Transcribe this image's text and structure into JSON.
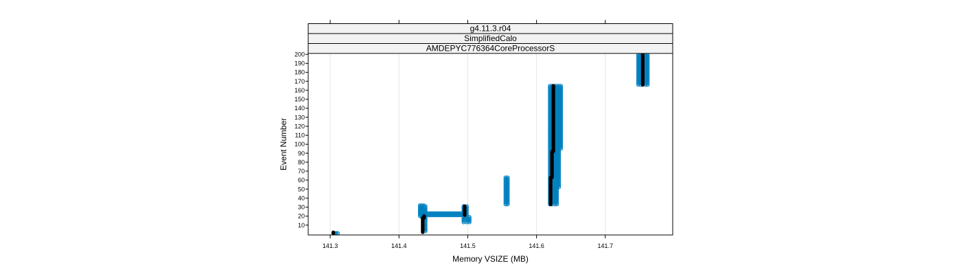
{
  "chart_data": {
    "type": "scatter",
    "strips": [
      "g4.11.3.r04",
      "SimplifiedCalo",
      "AMDEPYC776364CoreProcessorS"
    ],
    "xlabel": "Memory VSIZE (MB)",
    "ylabel": "Event Number",
    "xlim": [
      141.268,
      141.798
    ],
    "ylim": [
      -1,
      201
    ],
    "x_ticks": [
      141.3,
      141.4,
      141.5,
      141.6,
      141.7
    ],
    "x_tick_labels": [
      "141.3",
      "141.4",
      "141.5",
      "141.6",
      "141.7"
    ],
    "y_ticks": [
      10,
      20,
      30,
      40,
      50,
      60,
      70,
      80,
      90,
      100,
      110,
      120,
      130,
      140,
      150,
      160,
      170,
      180,
      190,
      200
    ],
    "y_tick_labels": [
      "10",
      "20",
      "30",
      "40",
      "50",
      "60",
      "70",
      "80",
      "90",
      "100",
      "110",
      "120",
      "130",
      "140",
      "150",
      "160",
      "170",
      "180",
      "190",
      "200"
    ],
    "grid": "vertical",
    "colors": {
      "series_blue": "#0080bf",
      "series_black": "#000000",
      "strip_bg": "#f2f2f2"
    },
    "series": [
      {
        "color": "#0080bf",
        "marker": "open-circle",
        "segments": [
          {
            "x": [
              141.3045,
              141.311
            ],
            "y": [
              1,
              1
            ]
          },
          {
            "x": [
              141.4305,
              141.4305
            ],
            "y": [
              20,
              32
            ]
          },
          {
            "x": [
              141.433,
              141.433
            ],
            "y": [
              19,
              32
            ]
          },
          {
            "x": [
              141.436,
              141.436
            ],
            "y": [
              19,
              32
            ]
          },
          {
            "x": [
              141.4385,
              141.4385
            ],
            "y": [
              3,
              31
            ]
          },
          {
            "x": [
              141.4365,
              141.496
            ],
            "y": [
              21,
              21
            ]
          },
          {
            "x": [
              141.4365,
              141.496
            ],
            "y": [
              23,
              23
            ]
          },
          {
            "x": [
              141.494,
              141.494
            ],
            "y": [
              13,
              31
            ]
          },
          {
            "x": [
              141.4985,
              141.4985
            ],
            "y": [
              13,
              31
            ]
          },
          {
            "x": [
              141.5025,
              141.5025
            ],
            "y": [
              13,
              19
            ]
          },
          {
            "x": [
              141.555,
              141.555
            ],
            "y": [
              33,
              63
            ]
          },
          {
            "x": [
              141.558,
              141.558
            ],
            "y": [
              33,
              63
            ]
          },
          {
            "x": [
              141.6195,
              141.6195
            ],
            "y": [
              33,
              165
            ]
          },
          {
            "x": [
              141.6225,
              141.6225
            ],
            "y": [
              33,
              165
            ]
          },
          {
            "x": [
              141.6265,
              141.6265
            ],
            "y": [
              33,
              165
            ]
          },
          {
            "x": [
              141.6295,
              141.6295
            ],
            "y": [
              33,
              165
            ]
          },
          {
            "x": [
              141.6325,
              141.6325
            ],
            "y": [
              52,
              165
            ]
          },
          {
            "x": [
              141.6355,
              141.6355
            ],
            "y": [
              95,
              165
            ]
          },
          {
            "x": [
              141.748,
              141.748
            ],
            "y": [
              166,
              200
            ]
          },
          {
            "x": [
              141.7515,
              141.7515
            ],
            "y": [
              166,
              200
            ]
          },
          {
            "x": [
              141.7585,
              141.7585
            ],
            "y": [
              166,
              200
            ]
          },
          {
            "x": [
              141.7615,
              141.7615
            ],
            "y": [
              166,
              200
            ]
          }
        ]
      },
      {
        "color": "#000000",
        "marker": "filled-circle",
        "segments": [
          {
            "x": [
              141.3045,
              141.3045
            ],
            "y": [
              1,
              2
            ]
          },
          {
            "x": [
              141.4345,
              141.4345
            ],
            "y": [
              2,
              18
            ]
          },
          {
            "x": [
              141.4365,
              141.4365
            ],
            "y": [
              18,
              20
            ]
          },
          {
            "x": [
              141.4955,
              141.4955
            ],
            "y": [
              21,
              31
            ]
          },
          {
            "x": [
              141.6205,
              141.6205
            ],
            "y": [
              33,
              63
            ]
          },
          {
            "x": [
              141.6225,
              141.6225
            ],
            "y": [
              63,
              92
            ]
          },
          {
            "x": [
              141.6245,
              141.6245
            ],
            "y": [
              92,
              165
            ]
          },
          {
            "x": [
              141.7545,
              141.7545
            ],
            "y": [
              166,
              200
            ]
          }
        ]
      }
    ]
  }
}
